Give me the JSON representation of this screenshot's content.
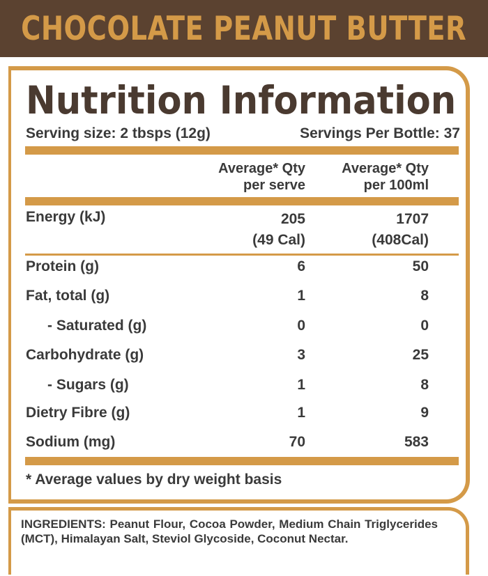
{
  "header": {
    "product_name": "CHOCOLATE PEANUT BUTTER"
  },
  "panel": {
    "title": "Nutrition Information",
    "serving_size": "Serving size: 2 tbsps (12g)",
    "servings_per_bottle": "Servings Per Bottle: 37",
    "columns": [
      {
        "line1": "Average* Qty",
        "line2": "per serve"
      },
      {
        "line1": "Average* Qty",
        "line2": "per 100ml"
      }
    ],
    "rows": [
      {
        "label": "Energy (kJ)",
        "per_serve": "205",
        "per_serve_sub": "(49 Cal)",
        "per_100": "1707",
        "per_100_sub": "(408Cal)"
      },
      {
        "label": "Protein (g)",
        "per_serve": "6",
        "per_100": "50"
      },
      {
        "label": "Fat, total (g)",
        "per_serve": "1",
        "per_100": "8"
      },
      {
        "label": "- Saturated (g)",
        "per_serve": "0",
        "per_100": "0"
      },
      {
        "label": "Carbohydrate (g)",
        "per_serve": "3",
        "per_100": "25"
      },
      {
        "label": "- Sugars (g)",
        "per_serve": "1",
        "per_100": "8"
      },
      {
        "label": "Dietry Fibre (g)",
        "per_serve": "1",
        "per_100": "9"
      },
      {
        "label": "Sodium (mg)",
        "per_serve": "70",
        "per_100": "583"
      }
    ],
    "footnote": "* Average values by dry weight basis"
  },
  "ingredients": {
    "text": "INGREDIENTS: Peanut Flour, Cocoa Powder, Medium Chain Triglycerides (MCT), Himalayan Salt, Steviol Glycoside, Coconut Nectar."
  },
  "colors": {
    "banner": "#5b4230",
    "accent": "#d49a48",
    "title_text": "#4a3a30"
  }
}
